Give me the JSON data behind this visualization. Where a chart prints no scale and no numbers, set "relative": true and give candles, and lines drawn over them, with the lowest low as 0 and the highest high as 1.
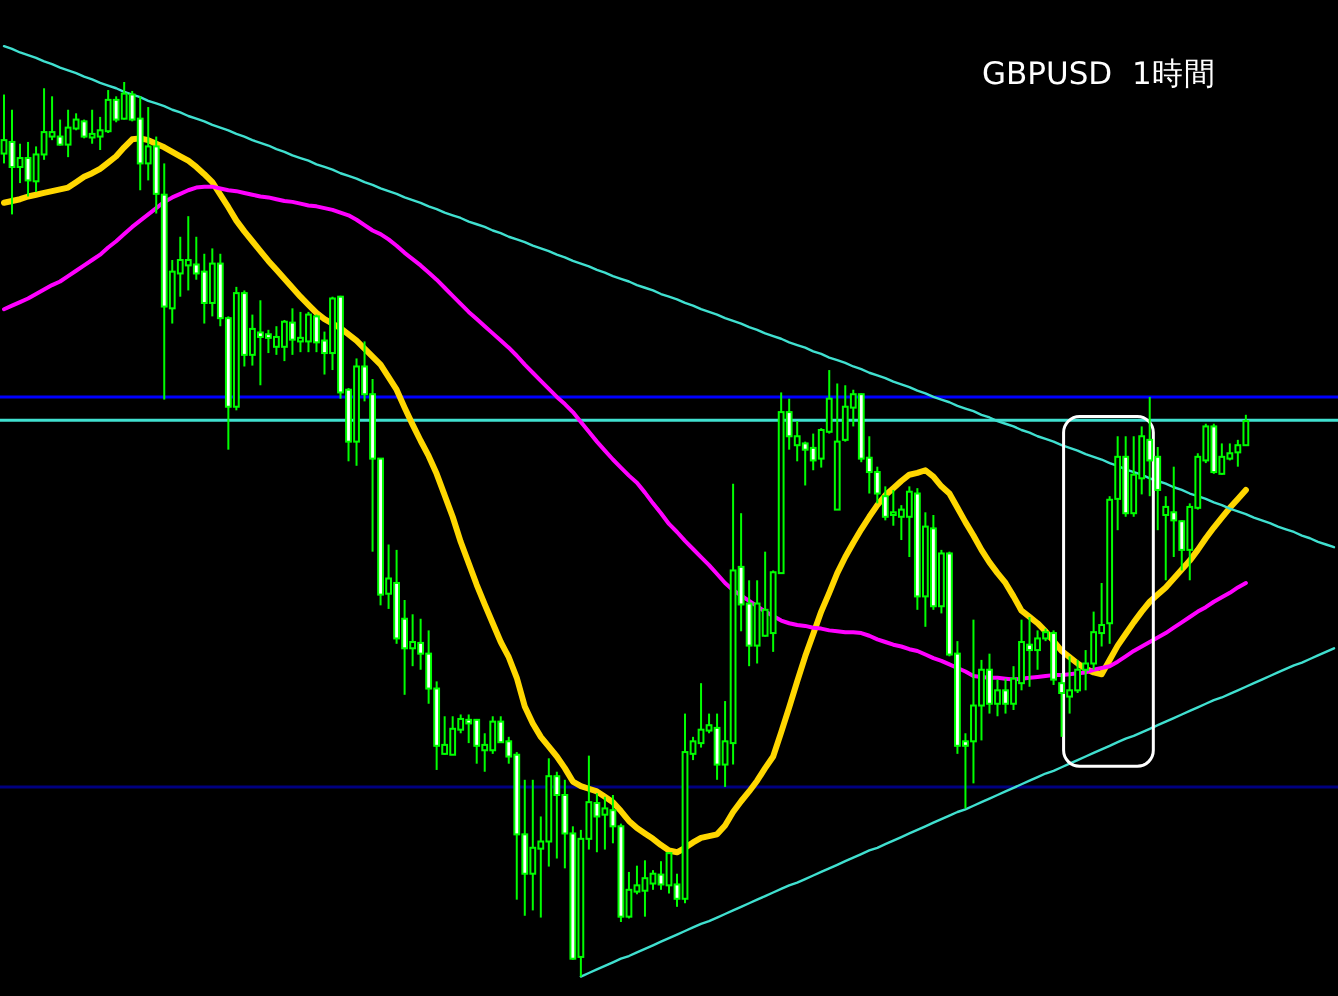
{
  "chart_data": {
    "type": "candlestick",
    "title": "GBPUSD  1時間",
    "relative": true,
    "color": "#00ff00",
    "categories": [
      null,
      null,
      null,
      null,
      null,
      null,
      null,
      null,
      null,
      null,
      null,
      null,
      null,
      null,
      null,
      null,
      null,
      null,
      null,
      null,
      null,
      null,
      null,
      null,
      null,
      null,
      null,
      null,
      null,
      null,
      null,
      null,
      null,
      null,
      null,
      null,
      null,
      null,
      null,
      null,
      null,
      null,
      null,
      null,
      null,
      null,
      null,
      null,
      null,
      null,
      null,
      null,
      null,
      null,
      null,
      null,
      null,
      null,
      null,
      null,
      null,
      null,
      null,
      null,
      null,
      null,
      null,
      null,
      null,
      null,
      null,
      null,
      null,
      null,
      null,
      null,
      null,
      null,
      null,
      null,
      null,
      null,
      null,
      null,
      null,
      null,
      null,
      null,
      null,
      null,
      null,
      null,
      null,
      null,
      null,
      null,
      null,
      null,
      null,
      null,
      null,
      null,
      null,
      null,
      null,
      null,
      null,
      null,
      null,
      null,
      null,
      null,
      null,
      null,
      null,
      null,
      null,
      null,
      null,
      null,
      null,
      null,
      null,
      null,
      null,
      null,
      null,
      null,
      null,
      null,
      null,
      null,
      null,
      null,
      null,
      null,
      null,
      null,
      null,
      null,
      null,
      null,
      null,
      null,
      null,
      null,
      null,
      null,
      null,
      null,
      null,
      null,
      null,
      null,
      null,
      null,
      null,
      null,
      null,
      null,
      null,
      null,
      null,
      null,
      null,
      null,
      null
    ],
    "ohlc": [
      [
        0.92,
        0.986,
        0.909,
        0.935
      ],
      [
        0.933,
        0.969,
        0.852,
        0.905
      ],
      [
        0.905,
        0.931,
        0.887,
        0.915
      ],
      [
        0.915,
        0.933,
        0.872,
        0.89
      ],
      [
        0.889,
        0.928,
        0.877,
        0.919
      ],
      [
        0.919,
        0.993,
        0.913,
        0.944
      ],
      [
        0.939,
        0.984,
        0.935,
        0.944
      ],
      [
        0.939,
        0.958,
        0.929,
        0.93
      ],
      [
        0.93,
        0.969,
        0.916,
        0.949
      ],
      [
        0.948,
        0.965,
        0.946,
        0.958
      ],
      [
        0.956,
        0.958,
        0.937,
        0.939
      ],
      [
        0.938,
        0.969,
        0.931,
        0.942
      ],
      [
        0.939,
        0.961,
        0.924,
        0.946
      ],
      [
        0.945,
        0.991,
        0.943,
        0.98
      ],
      [
        0.98,
        0.984,
        0.955,
        0.958
      ],
      [
        0.959,
        1,
        0.958,
        0.987
      ],
      [
        0.986,
        0.99,
        0.956,
        0.958
      ],
      [
        0.959,
        0.984,
        0.879,
        0.909
      ],
      [
        0.909,
        0.972,
        0.89,
        0.928
      ],
      [
        0.928,
        0.939,
        0.853,
        0.875
      ],
      [
        0.874,
        0.909,
        0.645,
        0.749
      ],
      [
        0.747,
        0.801,
        0.73,
        0.788
      ],
      [
        0.786,
        0.827,
        0.76,
        0.801
      ],
      [
        0.795,
        0.85,
        0.767,
        0.801
      ],
      [
        0.796,
        0.827,
        0.779,
        0.786
      ],
      [
        0.788,
        0.808,
        0.73,
        0.753
      ],
      [
        0.753,
        0.814,
        0.738,
        0.797
      ],
      [
        0.797,
        0.808,
        0.727,
        0.736
      ],
      [
        0.736,
        0.738,
        0.589,
        0.637
      ],
      [
        0.637,
        0.771,
        0.633,
        0.764
      ],
      [
        0.764,
        0.767,
        0.682,
        0.695
      ],
      [
        0.695,
        0.74,
        0.683,
        0.724
      ],
      [
        0.72,
        0.756,
        0.661,
        0.715
      ],
      [
        0.718,
        0.723,
        0.697,
        0.714
      ],
      [
        0.704,
        0.727,
        0.695,
        0.715
      ],
      [
        0.704,
        0.734,
        0.688,
        0.732
      ],
      [
        0.731,
        0.747,
        0.695,
        0.712
      ],
      [
        0.71,
        0.743,
        0.698,
        0.714
      ],
      [
        0.71,
        0.743,
        0.698,
        0.74
      ],
      [
        0.738,
        0.74,
        0.698,
        0.709
      ],
      [
        0.711,
        0.721,
        0.673,
        0.697
      ],
      [
        0.697,
        0.76,
        0.678,
        0.758
      ],
      [
        0.76,
        0.761,
        0.646,
        0.653
      ],
      [
        0.656,
        0.658,
        0.576,
        0.598
      ],
      [
        0.598,
        0.691,
        0.571,
        0.682
      ],
      [
        0.682,
        0.71,
        0.643,
        0.651
      ],
      [
        0.651,
        0.668,
        0.475,
        0.579
      ],
      [
        0.579,
        0.579,
        0.415,
        0.427
      ],
      [
        0.428,
        0.483,
        0.411,
        0.445
      ],
      [
        0.44,
        0.477,
        0.372,
        0.378
      ],
      [
        0.4,
        0.421,
        0.315,
        0.367
      ],
      [
        0.367,
        0.405,
        0.347,
        0.374
      ],
      [
        0.373,
        0.4,
        0.343,
        0.361
      ],
      [
        0.361,
        0.387,
        0.305,
        0.322
      ],
      [
        0.322,
        0.33,
        0.231,
        0.258
      ],
      [
        0.249,
        0.291,
        0.248,
        0.259
      ],
      [
        0.248,
        0.291,
        0.248,
        0.277
      ],
      [
        0.276,
        0.293,
        0.272,
        0.288
      ],
      [
        0.287,
        0.293,
        0.261,
        0.283
      ],
      [
        0.287,
        0.288,
        0.238,
        0.258
      ],
      [
        0.253,
        0.272,
        0.229,
        0.259
      ],
      [
        0.253,
        0.291,
        0.249,
        0.285
      ],
      [
        0.285,
        0.291,
        0.262,
        0.262
      ],
      [
        0.263,
        0.268,
        0.238,
        0.246
      ],
      [
        0.248,
        0.251,
        0.086,
        0.159
      ],
      [
        0.159,
        0.22,
        0.068,
        0.115
      ],
      [
        0.115,
        0.22,
        0.074,
        0.144
      ],
      [
        0.143,
        0.179,
        0.066,
        0.151
      ],
      [
        0.151,
        0.244,
        0.123,
        0.224
      ],
      [
        0.224,
        0.229,
        0.132,
        0.203
      ],
      [
        0.203,
        0.22,
        0.121,
        0.16
      ],
      [
        0.16,
        0.168,
        0.019,
        0.02
      ],
      [
        0.022,
        0.164,
        0,
        0.154
      ],
      [
        0.154,
        0.247,
        0.142,
        0.195
      ],
      [
        0.194,
        0.205,
        0.139,
        0.179
      ],
      [
        0.181,
        0.201,
        0.142,
        0.188
      ],
      [
        0.186,
        0.203,
        0.149,
        0.168
      ],
      [
        0.168,
        0.171,
        0.061,
        0.067
      ],
      [
        0.067,
        0.117,
        0.065,
        0.097
      ],
      [
        0.095,
        0.124,
        0.092,
        0.102
      ],
      [
        0.096,
        0.13,
        0.067,
        0.11
      ],
      [
        0.104,
        0.119,
        0.097,
        0.115
      ],
      [
        0.114,
        0.129,
        0.097,
        0.103
      ],
      [
        0.102,
        0.138,
        0.093,
        0.138
      ],
      [
        0.103,
        0.115,
        0.078,
        0.087
      ],
      [
        0.087,
        0.294,
        0.082,
        0.251
      ],
      [
        0.249,
        0.268,
        0.242,
        0.263
      ],
      [
        0.261,
        0.328,
        0.256,
        0.276
      ],
      [
        0.275,
        0.294,
        0.272,
        0.281
      ],
      [
        0.278,
        0.294,
        0.22,
        0.237
      ],
      [
        0.237,
        0.308,
        0.212,
        0.263
      ],
      [
        0.261,
        0.551,
        0.237,
        0.454
      ],
      [
        0.458,
        0.518,
        0.386,
        0.416
      ],
      [
        0.417,
        0.443,
        0.347,
        0.37
      ],
      [
        0.37,
        0.443,
        0.35,
        0.417
      ],
      [
        0.381,
        0.475,
        0.38,
        0.41
      ],
      [
        0.384,
        0.454,
        0.363,
        0.452
      ],
      [
        0.451,
        0.653,
        0.451,
        0.631
      ],
      [
        0.631,
        0.646,
        0.589,
        0.604
      ],
      [
        0.594,
        0.621,
        0.576,
        0.604
      ],
      [
        0.596,
        0.598,
        0.549,
        0.589
      ],
      [
        0.591,
        0.607,
        0.566,
        0.577
      ],
      [
        0.579,
        0.613,
        0.569,
        0.611
      ],
      [
        0.609,
        0.678,
        0.607,
        0.646
      ],
      [
        0.522,
        0.663,
        0.522,
        0.598
      ],
      [
        0.6,
        0.661,
        0.598,
        0.637
      ],
      [
        0.636,
        0.656,
        0.615,
        0.651
      ],
      [
        0.651,
        0.652,
        0.575,
        0.579
      ],
      [
        0.58,
        0.604,
        0.54,
        0.564
      ],
      [
        0.564,
        0.57,
        0.529,
        0.54
      ],
      [
        0.537,
        0.548,
        0.51,
        0.514
      ],
      [
        0.516,
        0.544,
        0.504,
        0.519
      ],
      [
        0.514,
        0.527,
        0.488,
        0.522
      ],
      [
        0.514,
        0.548,
        0.469,
        0.542
      ],
      [
        0.54,
        0.546,
        0.41,
        0.425
      ],
      [
        0.425,
        0.519,
        0.391,
        0.503
      ],
      [
        0.501,
        0.516,
        0.41,
        0.414
      ],
      [
        0.414,
        0.477,
        0.406,
        0.473
      ],
      [
        0.473,
        0.475,
        0.358,
        0.36
      ],
      [
        0.361,
        0.375,
        0.249,
        0.258
      ],
      [
        0.263,
        0.272,
        0.188,
        0.258
      ],
      [
        0.263,
        0.399,
        0.216,
        0.303
      ],
      [
        0.303,
        0.354,
        0.264,
        0.343
      ],
      [
        0.343,
        0.361,
        0.294,
        0.305
      ],
      [
        0.305,
        0.332,
        0.291,
        0.32
      ],
      [
        0.32,
        0.333,
        0.294,
        0.305
      ],
      [
        0.305,
        0.347,
        0.298,
        0.333
      ],
      [
        0.328,
        0.399,
        0.32,
        0.374
      ],
      [
        0.371,
        0.402,
        0.324,
        0.365
      ],
      [
        0.365,
        0.387,
        0.343,
        0.378
      ],
      [
        0.378,
        0.389,
        0.375,
        0.385
      ],
      [
        0.384,
        0.387,
        0.326,
        0.332
      ],
      [
        0.328,
        0.339,
        0.268,
        0.317
      ],
      [
        0.313,
        0.358,
        0.294,
        0.32
      ],
      [
        0.32,
        0.354,
        0.317,
        0.343
      ],
      [
        0.343,
        0.365,
        0.32,
        0.35
      ],
      [
        0.35,
        0.408,
        0.343,
        0.385
      ],
      [
        0.384,
        0.44,
        0.369,
        0.393
      ],
      [
        0.395,
        0.537,
        0.372,
        0.533
      ],
      [
        0.534,
        0.604,
        0.499,
        0.581
      ],
      [
        0.581,
        0.604,
        0.514,
        0.518
      ],
      [
        0.518,
        0.604,
        0.514,
        0.561
      ],
      [
        0.557,
        0.615,
        0.539,
        0.604
      ],
      [
        0.6,
        0.648,
        0.537,
        0.577
      ],
      [
        0.581,
        0.592,
        0.499,
        0.544
      ],
      [
        0.516,
        0.537,
        0.443,
        0.525
      ],
      [
        0.519,
        0.57,
        0.469,
        0.51
      ],
      [
        0.509,
        0.51,
        0.454,
        0.477
      ],
      [
        0.477,
        0.529,
        0.443,
        0.525
      ],
      [
        0.524,
        0.585,
        0.522,
        0.581
      ],
      [
        0.577,
        0.618,
        0.574,
        0.615
      ],
      [
        0.615,
        0.618,
        0.562,
        0.564
      ],
      [
        0.562,
        0.596,
        0.561,
        0.581
      ],
      [
        0.579,
        0.596,
        0.577,
        0.585
      ],
      [
        0.586,
        0.6,
        0.57,
        0.594
      ],
      [
        0.594,
        0.628,
        0.594,
        0.621
      ],
      null,
      null,
      null,
      null,
      null,
      null,
      null,
      null,
      null,
      null,
      null
    ],
    "series": [
      {
        "type": "line",
        "color": "#ffd700",
        "values": [
          0.865,
          0.867,
          0.869,
          0.872,
          0.874,
          0.876,
          0.878,
          0.88,
          0.882,
          0.888,
          0.894,
          0.898,
          0.903,
          0.91,
          0.917,
          0.927,
          0.936,
          0.937,
          0.935,
          0.931,
          0.927,
          0.922,
          0.917,
          0.912,
          0.905,
          0.897,
          0.888,
          0.874,
          0.86,
          0.845,
          0.833,
          0.822,
          0.811,
          0.8,
          0.79,
          0.78,
          0.77,
          0.76,
          0.751,
          0.742,
          0.735,
          0.73,
          0.725,
          0.718,
          0.711,
          0.702,
          0.693,
          0.684,
          0.67,
          0.656,
          0.636,
          0.617,
          0.599,
          0.582,
          0.562,
          0.538,
          0.514,
          0.486,
          0.462,
          0.438,
          0.416,
          0.395,
          0.374,
          0.357,
          0.334,
          0.302,
          0.283,
          0.268,
          0.257,
          0.246,
          0.233,
          0.218,
          0.213,
          0.21,
          0.207,
          0.201,
          0.195,
          0.185,
          0.174,
          0.166,
          0.16,
          0.154,
          0.147,
          0.141,
          0.139,
          0.144,
          0.15,
          0.155,
          0.157,
          0.159,
          0.169,
          0.184,
          0.196,
          0.207,
          0.219,
          0.233,
          0.246,
          0.273,
          0.301,
          0.33,
          0.358,
          0.383,
          0.408,
          0.429,
          0.451,
          0.469,
          0.485,
          0.5,
          0.514,
          0.527,
          0.538,
          0.546,
          0.554,
          0.561,
          0.563,
          0.566,
          0.559,
          0.548,
          0.54,
          0.524,
          0.508,
          0.493,
          0.477,
          0.463,
          0.451,
          0.44,
          0.425,
          0.409,
          0.402,
          0.395,
          0.386,
          0.375,
          0.364,
          0.357,
          0.35,
          0.344,
          0.34,
          0.338,
          0.354,
          0.37,
          0.383,
          0.396,
          0.408,
          0.419,
          0.427,
          0.435,
          0.445,
          0.455,
          0.465,
          0.477,
          0.49,
          0.502,
          0.513,
          0.524,
          0.534,
          0.544,
          null,
          null,
          null,
          null,
          null,
          null,
          null,
          null,
          null,
          null,
          null
        ]
      },
      {
        "type": "line",
        "color": "#ff00ff",
        "values": [
          0.746,
          0.75,
          0.754,
          0.758,
          0.763,
          0.768,
          0.773,
          0.777,
          0.783,
          0.789,
          0.795,
          0.801,
          0.807,
          0.815,
          0.822,
          0.83,
          0.838,
          0.845,
          0.852,
          0.859,
          0.866,
          0.871,
          0.875,
          0.879,
          0.882,
          0.883,
          0.883,
          0.881,
          0.879,
          0.878,
          0.876,
          0.874,
          0.872,
          0.871,
          0.869,
          0.867,
          0.866,
          0.864,
          0.862,
          0.861,
          0.859,
          0.857,
          0.854,
          0.851,
          0.846,
          0.84,
          0.834,
          0.83,
          0.824,
          0.817,
          0.809,
          0.802,
          0.795,
          0.787,
          0.779,
          0.77,
          0.761,
          0.752,
          0.743,
          0.735,
          0.727,
          0.719,
          0.711,
          0.703,
          0.694,
          0.684,
          0.675,
          0.666,
          0.657,
          0.648,
          0.64,
          0.631,
          0.62,
          0.609,
          0.598,
          0.588,
          0.578,
          0.569,
          0.56,
          0.552,
          0.541,
          0.529,
          0.518,
          0.506,
          0.497,
          0.487,
          0.478,
          0.469,
          0.46,
          0.45,
          0.44,
          0.432,
          0.426,
          0.42,
          0.414,
          0.408,
          0.403,
          0.398,
          0.395,
          0.393,
          0.392,
          0.39,
          0.389,
          0.387,
          0.386,
          0.385,
          0.385,
          0.384,
          0.381,
          0.377,
          0.374,
          0.371,
          0.369,
          0.366,
          0.364,
          0.36,
          0.356,
          0.353,
          0.349,
          0.345,
          0.341,
          0.336,
          0.335,
          0.334,
          0.334,
          0.333,
          0.332,
          0.333,
          0.334,
          0.335,
          0.336,
          0.337,
          0.337,
          0.338,
          0.339,
          0.34,
          0.343,
          0.345,
          0.347,
          0.352,
          0.358,
          0.364,
          0.369,
          0.374,
          0.379,
          0.384,
          0.39,
          0.396,
          0.402,
          0.408,
          0.413,
          0.419,
          0.424,
          0.429,
          0.435,
          0.44,
          null,
          null,
          null,
          null,
          null,
          null,
          null,
          null,
          null,
          null,
          null
        ]
      },
      {
        "type": "line",
        "color": "#40e0d0",
        "values": [
          1.04,
          1.037,
          1.033,
          1.03,
          1.027,
          1.023,
          1.02,
          1.016,
          1.013,
          1.01,
          1.006,
          1.003,
          0.999,
          0.996,
          0.993,
          0.989,
          0.986,
          0.983,
          0.979,
          0.976,
          0.973,
          0.969,
          0.966,
          0.962,
          0.959,
          0.956,
          0.952,
          0.949,
          0.946,
          0.942,
          0.939,
          0.935,
          0.932,
          0.929,
          0.925,
          0.922,
          0.918,
          0.915,
          0.912,
          0.908,
          0.905,
          0.902,
          0.898,
          0.895,
          0.892,
          0.888,
          0.885,
          0.881,
          0.878,
          0.875,
          0.871,
          0.868,
          0.865,
          0.861,
          0.858,
          0.854,
          0.851,
          0.848,
          0.844,
          0.841,
          0.838,
          0.834,
          0.831,
          0.827,
          0.824,
          0.821,
          0.817,
          0.814,
          0.811,
          0.807,
          0.804,
          0.8,
          0.797,
          0.794,
          0.79,
          0.787,
          0.783,
          0.78,
          0.777,
          0.773,
          0.77,
          0.767,
          0.763,
          0.76,
          0.757,
          0.753,
          0.75,
          0.746,
          0.743,
          0.74,
          0.736,
          0.733,
          0.73,
          0.726,
          0.723,
          0.719,
          0.716,
          0.713,
          0.709,
          0.706,
          0.703,
          0.699,
          0.696,
          0.692,
          0.689,
          0.686,
          0.682,
          0.679,
          0.675,
          0.672,
          0.669,
          0.665,
          0.662,
          0.659,
          0.655,
          0.652,
          0.648,
          0.645,
          0.642,
          0.638,
          0.635,
          0.632,
          0.628,
          0.625,
          0.621,
          0.618,
          0.615,
          0.611,
          0.608,
          0.604,
          0.601,
          0.598,
          0.594,
          0.591,
          0.588,
          0.584,
          0.581,
          0.578,
          0.574,
          0.571,
          0.567,
          0.564,
          0.561,
          0.557,
          0.554,
          0.551,
          0.547,
          0.544,
          0.54,
          0.537,
          0.534,
          0.53,
          0.527,
          0.523,
          0.52,
          0.517,
          0.513,
          0.51,
          0.507,
          0.503,
          0.5,
          0.497,
          0.493,
          0.49,
          0.486,
          0.483,
          0.48
        ]
      },
      {
        "type": "line",
        "color": "#40e0d0",
        "values": [
          null,
          null,
          null,
          null,
          null,
          null,
          null,
          null,
          null,
          null,
          null,
          null,
          null,
          null,
          null,
          null,
          null,
          null,
          null,
          null,
          null,
          null,
          null,
          null,
          null,
          null,
          null,
          null,
          null,
          null,
          null,
          null,
          null,
          null,
          null,
          null,
          null,
          null,
          null,
          null,
          null,
          null,
          null,
          null,
          null,
          null,
          null,
          null,
          null,
          null,
          null,
          null,
          null,
          null,
          null,
          null,
          null,
          null,
          null,
          null,
          null,
          null,
          null,
          null,
          null,
          null,
          null,
          null,
          null,
          null,
          null,
          null,
          0,
          0.004,
          0.008,
          0.012,
          0.016,
          0.02,
          0.023,
          0.027,
          0.031,
          0.035,
          0.039,
          0.043,
          0.047,
          0.051,
          0.055,
          0.059,
          0.062,
          0.066,
          0.07,
          0.074,
          0.078,
          0.082,
          0.086,
          0.09,
          0.094,
          0.098,
          0.102,
          0.105,
          0.109,
          0.113,
          0.117,
          0.121,
          0.125,
          0.129,
          0.133,
          0.137,
          0.141,
          0.144,
          0.148,
          0.152,
          0.156,
          0.16,
          0.164,
          0.168,
          0.172,
          0.176,
          0.18,
          0.184,
          0.187,
          0.191,
          0.195,
          0.199,
          0.203,
          0.207,
          0.211,
          0.215,
          0.219,
          0.223,
          0.227,
          0.23,
          0.234,
          0.238,
          0.242,
          0.246,
          0.25,
          0.254,
          0.258,
          0.262,
          0.266,
          0.269,
          0.273,
          0.277,
          0.281,
          0.285,
          0.289,
          0.293,
          0.297,
          0.301,
          0.305,
          0.309,
          0.312,
          0.316,
          0.32,
          0.324,
          0.328,
          0.332,
          0.336,
          0.34,
          0.344,
          0.348,
          0.351,
          0.355,
          0.359,
          0.363,
          0.367
        ]
      }
    ],
    "ref_lines": [
      {
        "axis": "y",
        "value": 0.648,
        "color": "#0000ff"
      },
      {
        "axis": "y",
        "value": 0.622,
        "color": "#40e0d0"
      },
      {
        "axis": "y",
        "value": 0.212,
        "color": "#000080"
      }
    ]
  }
}
